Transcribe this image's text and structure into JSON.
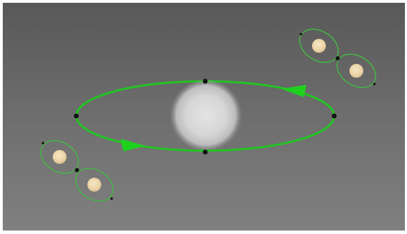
{
  "scene": {
    "background_top": "#585858",
    "background_bottom": "#808080",
    "orbit_color": "#22c522",
    "orbit_arrow_color": "#1fd11f",
    "binary_orbit_color": "#43b743",
    "node_color": "#121212",
    "central_body_color": "#d9d9d9",
    "binary_star_color": "#f1dcb4",
    "direction": "counterclockwise"
  }
}
